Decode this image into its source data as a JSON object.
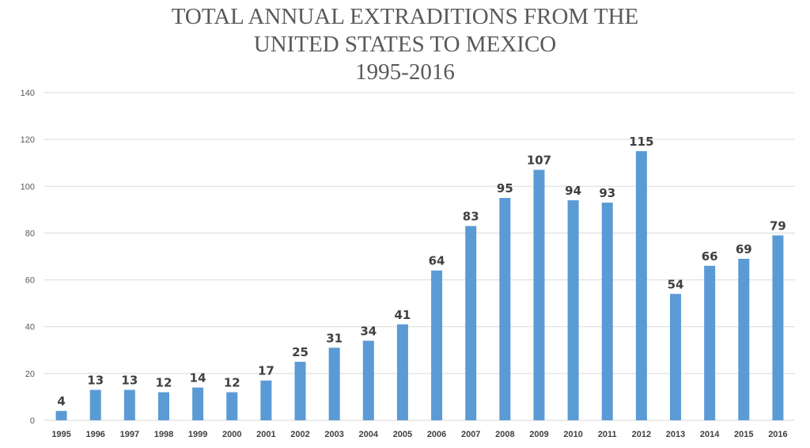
{
  "chart_data": {
    "type": "bar",
    "title_lines": [
      "TOTAL ANNUAL EXTRADITIONS FROM THE",
      "UNITED STATES TO MEXICO",
      "1995-2016"
    ],
    "categories": [
      "1995",
      "1996",
      "1997",
      "1998",
      "1999",
      "2000",
      "2001",
      "2002",
      "2003",
      "2004",
      "2005",
      "2006",
      "2007",
      "2008",
      "2009",
      "2010",
      "2011",
      "2012",
      "2013",
      "2014",
      "2015",
      "2016"
    ],
    "values": [
      4,
      13,
      13,
      12,
      14,
      12,
      17,
      25,
      31,
      34,
      41,
      64,
      83,
      95,
      107,
      94,
      93,
      115,
      54,
      66,
      69,
      79
    ],
    "ylim": [
      0,
      140
    ],
    "yticks": [
      0,
      20,
      40,
      60,
      80,
      100,
      120,
      140
    ],
    "grid": true,
    "data_labels": true,
    "bar_color": "#5b9bd5",
    "grid_color": "#d9d9d9"
  }
}
